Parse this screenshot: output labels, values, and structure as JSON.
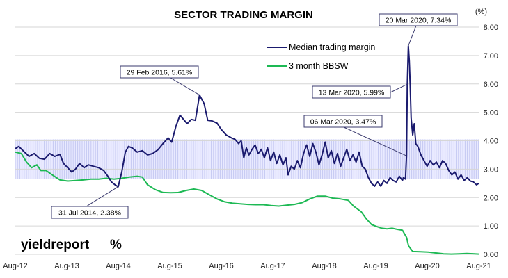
{
  "chart_data": {
    "type": "line",
    "title": "SECTOR TRADING MARGIN",
    "y_unit": "(%)",
    "ylim": [
      0,
      8
    ],
    "y_ticks": [
      "0.00",
      "1.00",
      "2.00",
      "3.00",
      "4.00",
      "5.00",
      "6.00",
      "7.00",
      "8.00"
    ],
    "x_ticks": [
      {
        "label": "Aug-12",
        "t": 2012.583
      },
      {
        "label": "Aug-13",
        "t": 2013.583
      },
      {
        "label": "Aug-14",
        "t": 2014.583
      },
      {
        "label": "Aug-15",
        "t": 2015.583
      },
      {
        "label": "Aug-16",
        "t": 2016.583
      },
      {
        "label": "Aug-17",
        "t": 2017.583
      },
      {
        "label": "Aug-18",
        "t": 2018.583
      },
      {
        "label": "Aug-19",
        "t": 2019.583
      },
      {
        "label": "Aug-20",
        "t": 2020.583
      },
      {
        "label": "Aug-21",
        "t": 2021.583
      }
    ],
    "xlim": [
      2012.583,
      2021.583
    ],
    "grid": true,
    "legend_position": "top-right",
    "band": {
      "low": 2.65,
      "high": 4.05,
      "color": "#c5c8f2"
    },
    "series": [
      {
        "name": "Median trading margin",
        "color": "#1a1a6e",
        "points": [
          [
            2012.583,
            3.72
          ],
          [
            2012.65,
            3.8
          ],
          [
            2012.75,
            3.62
          ],
          [
            2012.85,
            3.45
          ],
          [
            2012.95,
            3.55
          ],
          [
            2013.05,
            3.38
          ],
          [
            2013.15,
            3.35
          ],
          [
            2013.25,
            3.55
          ],
          [
            2013.35,
            3.45
          ],
          [
            2013.45,
            3.52
          ],
          [
            2013.52,
            3.2
          ],
          [
            2013.6,
            3.05
          ],
          [
            2013.68,
            2.9
          ],
          [
            2013.75,
            3.0
          ],
          [
            2013.83,
            3.2
          ],
          [
            2013.92,
            3.05
          ],
          [
            2014.0,
            3.15
          ],
          [
            2014.1,
            3.1
          ],
          [
            2014.2,
            3.05
          ],
          [
            2014.3,
            2.95
          ],
          [
            2014.38,
            2.75
          ],
          [
            2014.45,
            2.55
          ],
          [
            2014.52,
            2.45
          ],
          [
            2014.58,
            2.38
          ],
          [
            2014.65,
            2.9
          ],
          [
            2014.72,
            3.6
          ],
          [
            2014.78,
            3.8
          ],
          [
            2014.85,
            3.75
          ],
          [
            2014.95,
            3.6
          ],
          [
            2015.05,
            3.65
          ],
          [
            2015.15,
            3.5
          ],
          [
            2015.25,
            3.55
          ],
          [
            2015.35,
            3.68
          ],
          [
            2015.45,
            3.9
          ],
          [
            2015.55,
            4.1
          ],
          [
            2015.62,
            3.95
          ],
          [
            2015.7,
            4.5
          ],
          [
            2015.78,
            4.9
          ],
          [
            2015.85,
            4.75
          ],
          [
            2015.92,
            4.6
          ],
          [
            2016.0,
            4.75
          ],
          [
            2016.08,
            4.72
          ],
          [
            2016.16,
            5.61
          ],
          [
            2016.25,
            5.3
          ],
          [
            2016.32,
            4.72
          ],
          [
            2016.4,
            4.7
          ],
          [
            2016.5,
            4.62
          ],
          [
            2016.58,
            4.4
          ],
          [
            2016.68,
            4.2
          ],
          [
            2016.78,
            4.1
          ],
          [
            2016.85,
            4.05
          ],
          [
            2016.92,
            3.9
          ],
          [
            2016.97,
            4.0
          ],
          [
            2017.02,
            3.4
          ],
          [
            2017.07,
            3.75
          ],
          [
            2017.12,
            3.5
          ],
          [
            2017.18,
            3.7
          ],
          [
            2017.24,
            3.85
          ],
          [
            2017.3,
            3.55
          ],
          [
            2017.36,
            3.7
          ],
          [
            2017.42,
            3.4
          ],
          [
            2017.48,
            3.75
          ],
          [
            2017.54,
            3.3
          ],
          [
            2017.6,
            3.6
          ],
          [
            2017.66,
            3.2
          ],
          [
            2017.72,
            3.5
          ],
          [
            2017.78,
            3.15
          ],
          [
            2017.84,
            3.4
          ],
          [
            2017.88,
            2.8
          ],
          [
            2017.94,
            3.1
          ],
          [
            2018.0,
            3.0
          ],
          [
            2018.06,
            3.3
          ],
          [
            2018.12,
            3.05
          ],
          [
            2018.18,
            3.55
          ],
          [
            2018.24,
            3.85
          ],
          [
            2018.3,
            3.45
          ],
          [
            2018.36,
            3.9
          ],
          [
            2018.42,
            3.6
          ],
          [
            2018.48,
            3.15
          ],
          [
            2018.54,
            3.5
          ],
          [
            2018.6,
            3.95
          ],
          [
            2018.66,
            3.4
          ],
          [
            2018.72,
            3.65
          ],
          [
            2018.78,
            3.2
          ],
          [
            2018.84,
            3.55
          ],
          [
            2018.9,
            3.1
          ],
          [
            2018.96,
            3.4
          ],
          [
            2019.02,
            3.7
          ],
          [
            2019.08,
            3.3
          ],
          [
            2019.14,
            3.5
          ],
          [
            2019.2,
            3.25
          ],
          [
            2019.26,
            3.6
          ],
          [
            2019.32,
            3.1
          ],
          [
            2019.38,
            3.0
          ],
          [
            2019.44,
            2.7
          ],
          [
            2019.5,
            2.5
          ],
          [
            2019.56,
            2.4
          ],
          [
            2019.62,
            2.55
          ],
          [
            2019.68,
            2.4
          ],
          [
            2019.74,
            2.6
          ],
          [
            2019.8,
            2.5
          ],
          [
            2019.86,
            2.7
          ],
          [
            2019.92,
            2.6
          ],
          [
            2019.98,
            2.55
          ],
          [
            2020.04,
            2.75
          ],
          [
            2020.1,
            2.6
          ],
          [
            2020.12,
            2.7
          ],
          [
            2020.16,
            2.65
          ],
          [
            2020.18,
            3.47
          ],
          [
            2020.195,
            5.99
          ],
          [
            2020.215,
            7.34
          ],
          [
            2020.235,
            6.8
          ],
          [
            2020.25,
            6.0
          ],
          [
            2020.27,
            4.8
          ],
          [
            2020.3,
            4.2
          ],
          [
            2020.33,
            4.6
          ],
          [
            2020.36,
            3.9
          ],
          [
            2020.4,
            3.8
          ],
          [
            2020.46,
            3.5
          ],
          [
            2020.52,
            3.3
          ],
          [
            2020.58,
            3.1
          ],
          [
            2020.64,
            3.3
          ],
          [
            2020.7,
            3.15
          ],
          [
            2020.76,
            3.25
          ],
          [
            2020.82,
            3.05
          ],
          [
            2020.88,
            3.3
          ],
          [
            2020.94,
            3.2
          ],
          [
            2021.0,
            2.95
          ],
          [
            2021.06,
            2.8
          ],
          [
            2021.12,
            2.9
          ],
          [
            2021.18,
            2.65
          ],
          [
            2021.24,
            2.8
          ],
          [
            2021.3,
            2.6
          ],
          [
            2021.36,
            2.7
          ],
          [
            2021.42,
            2.58
          ],
          [
            2021.48,
            2.55
          ],
          [
            2021.54,
            2.45
          ],
          [
            2021.583,
            2.5
          ]
        ]
      },
      {
        "name": "3 month BBSW",
        "color": "#1db954",
        "points": [
          [
            2012.583,
            3.6
          ],
          [
            2012.7,
            3.55
          ],
          [
            2012.8,
            3.25
          ],
          [
            2012.9,
            3.05
          ],
          [
            2013.0,
            3.15
          ],
          [
            2013.08,
            2.95
          ],
          [
            2013.18,
            2.95
          ],
          [
            2013.3,
            2.8
          ],
          [
            2013.45,
            2.62
          ],
          [
            2013.6,
            2.58
          ],
          [
            2013.75,
            2.6
          ],
          [
            2013.9,
            2.62
          ],
          [
            2014.05,
            2.65
          ],
          [
            2014.2,
            2.65
          ],
          [
            2014.35,
            2.68
          ],
          [
            2014.5,
            2.65
          ],
          [
            2014.65,
            2.68
          ],
          [
            2014.8,
            2.72
          ],
          [
            2014.95,
            2.75
          ],
          [
            2015.05,
            2.72
          ],
          [
            2015.15,
            2.45
          ],
          [
            2015.3,
            2.28
          ],
          [
            2015.45,
            2.18
          ],
          [
            2015.6,
            2.17
          ],
          [
            2015.75,
            2.18
          ],
          [
            2015.9,
            2.25
          ],
          [
            2016.05,
            2.3
          ],
          [
            2016.2,
            2.25
          ],
          [
            2016.35,
            2.1
          ],
          [
            2016.5,
            1.95
          ],
          [
            2016.65,
            1.85
          ],
          [
            2016.8,
            1.8
          ],
          [
            2016.95,
            1.78
          ],
          [
            2017.1,
            1.76
          ],
          [
            2017.25,
            1.75
          ],
          [
            2017.4,
            1.75
          ],
          [
            2017.55,
            1.72
          ],
          [
            2017.7,
            1.7
          ],
          [
            2017.85,
            1.73
          ],
          [
            2018.0,
            1.76
          ],
          [
            2018.15,
            1.82
          ],
          [
            2018.3,
            1.95
          ],
          [
            2018.45,
            2.05
          ],
          [
            2018.6,
            2.05
          ],
          [
            2018.75,
            1.98
          ],
          [
            2018.9,
            1.95
          ],
          [
            2019.05,
            1.9
          ],
          [
            2019.15,
            1.7
          ],
          [
            2019.3,
            1.5
          ],
          [
            2019.4,
            1.25
          ],
          [
            2019.5,
            1.05
          ],
          [
            2019.6,
            0.98
          ],
          [
            2019.7,
            0.92
          ],
          [
            2019.8,
            0.9
          ],
          [
            2019.9,
            0.92
          ],
          [
            2020.0,
            0.88
          ],
          [
            2020.1,
            0.85
          ],
          [
            2020.18,
            0.6
          ],
          [
            2020.22,
            0.3
          ],
          [
            2020.3,
            0.1
          ],
          [
            2020.45,
            0.09
          ],
          [
            2020.6,
            0.08
          ],
          [
            2020.75,
            0.05
          ],
          [
            2020.9,
            0.02
          ],
          [
            2021.05,
            0.01
          ],
          [
            2021.2,
            0.02
          ],
          [
            2021.35,
            0.03
          ],
          [
            2021.5,
            0.02
          ],
          [
            2021.583,
            0.01
          ]
        ]
      }
    ],
    "annotations": [
      {
        "text": "20 Mar 2020,  7.34%",
        "t": 2020.215,
        "v": 7.34
      },
      {
        "text": "29 Feb 2016,  5.61%",
        "t": 2016.16,
        "v": 5.61
      },
      {
        "text": "13 Mar 2020,  5.99%",
        "t": 2020.195,
        "v": 5.99
      },
      {
        "text": "06 Mar 2020,  3.47%",
        "t": 2020.18,
        "v": 3.47
      },
      {
        "text": "31 Jul 2014,  2.38%",
        "t": 2014.58,
        "v": 2.38
      }
    ]
  },
  "logo": {
    "word": "yieldreport",
    "symbol": "%"
  }
}
